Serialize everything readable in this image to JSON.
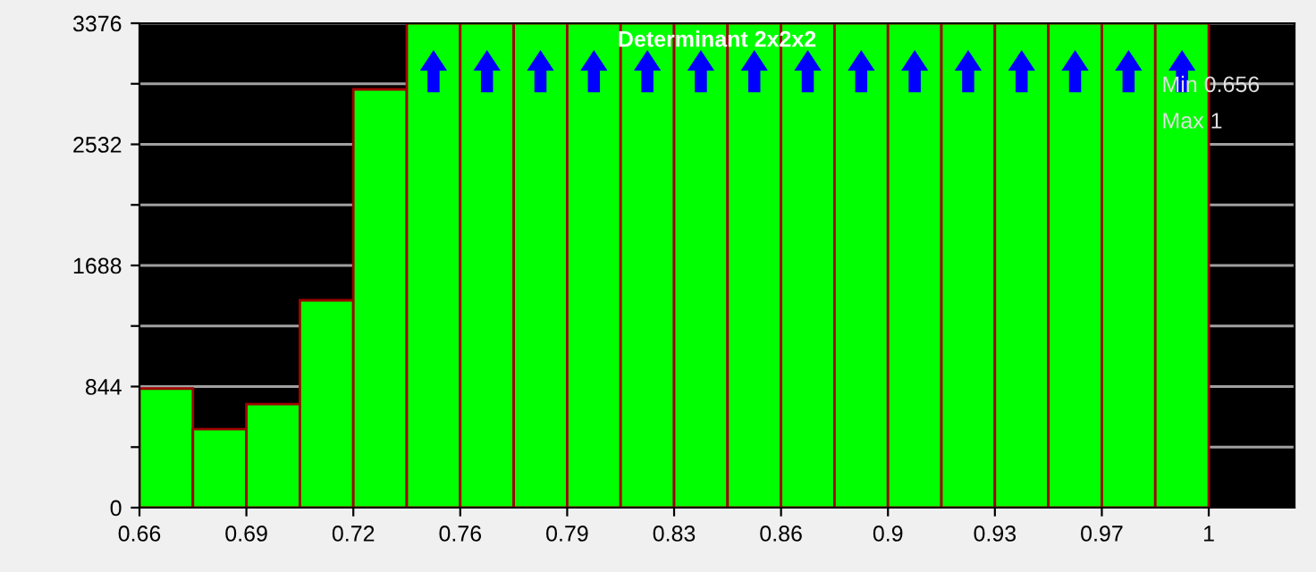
{
  "chart_data": {
    "type": "histogram",
    "title": "Determinant 2x2x2",
    "bins": [
      0.656,
      0.6732,
      0.6904,
      0.7076,
      0.7248,
      0.742,
      0.7592,
      0.7764,
      0.7936,
      0.8108,
      0.828,
      0.8452,
      0.8624,
      0.8796,
      0.8968,
      0.914,
      0.9312,
      0.9484,
      0.9656,
      0.9828,
      1.0
    ],
    "values": [
      830,
      548,
      722,
      1445,
      2915,
      3376,
      3376,
      3376,
      3376,
      3376,
      3376,
      3376,
      3376,
      3376,
      3376,
      3376,
      3376,
      3376,
      3376,
      3376
    ],
    "color": "#00ff00",
    "xlim": [
      0.656,
      1.0276
    ],
    "xticks": [
      {
        "value": 0.656,
        "label": "0.66"
      },
      {
        "value": 0.6904,
        "label": "0.69"
      },
      {
        "value": 0.7248,
        "label": "0.72"
      },
      {
        "value": 0.7592,
        "label": "0.76"
      },
      {
        "value": 0.7936,
        "label": "0.79"
      },
      {
        "value": 0.828,
        "label": "0.83"
      },
      {
        "value": 0.8624,
        "label": "0.86"
      },
      {
        "value": 0.8968,
        "label": "0.9"
      },
      {
        "value": 0.9312,
        "label": "0.93"
      },
      {
        "value": 0.9656,
        "label": "0.97"
      },
      {
        "value": 1.0,
        "label": "1"
      }
    ],
    "ylim": [
      0,
      3376
    ],
    "yticks": [
      0,
      {
        "value": 422,
        "label": null
      },
      844,
      {
        "value": 1266,
        "label": null
      },
      1688,
      {
        "value": 2110,
        "label": null
      },
      2532,
      {
        "value": 2954,
        "label": null
      },
      3376
    ],
    "grid": "y",
    "annotations": [
      "Min 0.656",
      "Max 1"
    ]
  }
}
